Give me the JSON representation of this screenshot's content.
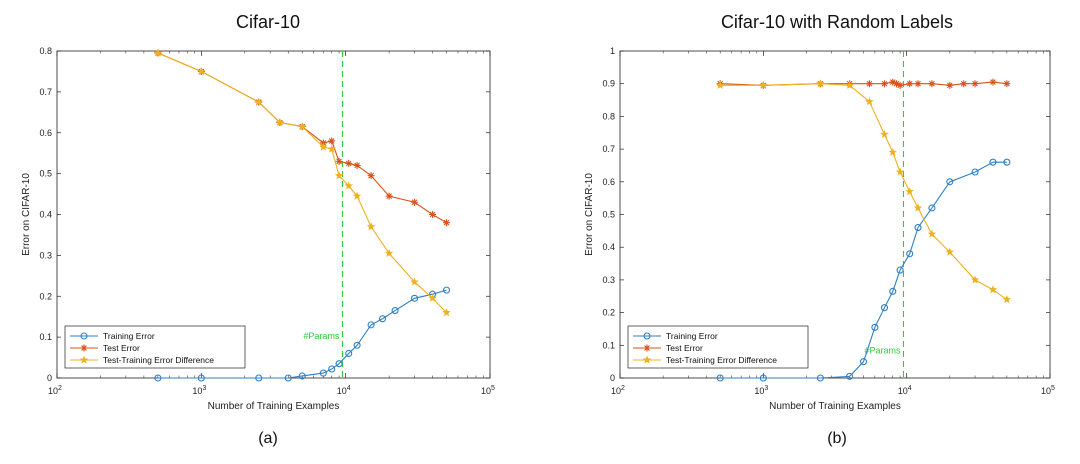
{
  "chart_data": [
    {
      "type": "line",
      "title": "Cifar-10",
      "caption": "(a)",
      "xlabel": "Number of Training Examples",
      "ylabel": "Error on CIFAR-10",
      "xscale": "log",
      "xlim": [
        100,
        100000
      ],
      "ylim": [
        0,
        0.8
      ],
      "yticks": [
        "0",
        "0.1",
        "0.2",
        "0.3",
        "0.4",
        "0.5",
        "0.6",
        "0.7",
        "0.8"
      ],
      "xticks": [
        {
          "base": "10",
          "exp": "2"
        },
        {
          "base": "10",
          "exp": "3"
        },
        {
          "base": "10",
          "exp": "4"
        },
        {
          "base": "10",
          "exp": "5"
        }
      ],
      "vline": {
        "x": 9500,
        "label": "#Params",
        "label_y": 0.095
      },
      "legend_position": "bottom-left",
      "series": [
        {
          "name": "Training Error",
          "color": "#2f7fc4",
          "marker": "circle",
          "x": [
            500,
            1000,
            2500,
            4000,
            5000,
            7000,
            8000,
            9000,
            10500,
            12000,
            15000,
            18000,
            22000,
            30000,
            40000,
            50000
          ],
          "y": [
            0,
            0,
            0,
            0,
            0.005,
            0.012,
            0.022,
            0.035,
            0.06,
            0.08,
            0.13,
            0.145,
            0.165,
            0.195,
            0.205,
            0.215
          ]
        },
        {
          "name": "Test Error",
          "color": "#d95319",
          "marker": "asterisk",
          "x": [
            500,
            1000,
            2500,
            3500,
            5000,
            7000,
            8000,
            9000,
            10500,
            12000,
            15000,
            20000,
            30000,
            40000,
            50000
          ],
          "y": [
            0.795,
            0.75,
            0.675,
            0.625,
            0.615,
            0.575,
            0.58,
            0.53,
            0.525,
            0.52,
            0.495,
            0.445,
            0.43,
            0.4,
            0.38
          ]
        },
        {
          "name": "Test-Training Error Difference",
          "color": "#edb120",
          "marker": "star",
          "x": [
            500,
            1000,
            2500,
            3500,
            5000,
            7000,
            8000,
            9000,
            10500,
            12000,
            15000,
            20000,
            30000,
            40000,
            50000
          ],
          "y": [
            0.795,
            0.75,
            0.675,
            0.625,
            0.615,
            0.565,
            0.56,
            0.495,
            0.47,
            0.445,
            0.37,
            0.305,
            0.235,
            0.195,
            0.16
          ]
        }
      ]
    },
    {
      "type": "line",
      "title": "Cifar-10 with Random Labels",
      "caption": "(b)",
      "xlabel": "Number of Training Examples",
      "ylabel": "Error on CIFAR-10",
      "xscale": "log",
      "xlim": [
        100,
        100000
      ],
      "ylim": [
        0,
        1
      ],
      "yticks": [
        "0",
        "0.1",
        "0.2",
        "0.3",
        "0.4",
        "0.5",
        "0.6",
        "0.7",
        "0.8",
        "0.9",
        "1"
      ],
      "xticks": [
        {
          "base": "10",
          "exp": "2"
        },
        {
          "base": "10",
          "exp": "3"
        },
        {
          "base": "10",
          "exp": "4"
        },
        {
          "base": "10",
          "exp": "5"
        }
      ],
      "vline": {
        "x": 9500,
        "label": "#Params",
        "label_y": 0.075
      },
      "legend_position": "bottom-left",
      "series": [
        {
          "name": "Training Error",
          "color": "#2f7fc4",
          "marker": "circle",
          "x": [
            500,
            1000,
            2500,
            4000,
            5000,
            6000,
            7000,
            8000,
            9000,
            10500,
            12000,
            15000,
            20000,
            30000,
            40000,
            50000
          ],
          "y": [
            0,
            0,
            0,
            0.005,
            0.05,
            0.155,
            0.215,
            0.265,
            0.33,
            0.38,
            0.46,
            0.52,
            0.6,
            0.63,
            0.66,
            0.66
          ]
        },
        {
          "name": "Test Error",
          "color": "#d95319",
          "marker": "asterisk",
          "x": [
            500,
            1000,
            2500,
            4000,
            5500,
            7000,
            8000,
            8500,
            9000,
            10500,
            12000,
            15000,
            20000,
            25000,
            30000,
            40000,
            50000
          ],
          "y": [
            0.9,
            0.895,
            0.9,
            0.9,
            0.9,
            0.9,
            0.905,
            0.9,
            0.895,
            0.9,
            0.9,
            0.9,
            0.895,
            0.9,
            0.9,
            0.905,
            0.9
          ]
        },
        {
          "name": "Test-Training Error Difference",
          "color": "#edb120",
          "marker": "star",
          "x": [
            500,
            1000,
            2500,
            4000,
            5500,
            7000,
            8000,
            9000,
            10500,
            12000,
            15000,
            20000,
            30000,
            40000,
            50000
          ],
          "y": [
            0.895,
            0.895,
            0.9,
            0.895,
            0.845,
            0.745,
            0.69,
            0.63,
            0.57,
            0.52,
            0.44,
            0.385,
            0.3,
            0.27,
            0.24
          ]
        }
      ]
    }
  ]
}
